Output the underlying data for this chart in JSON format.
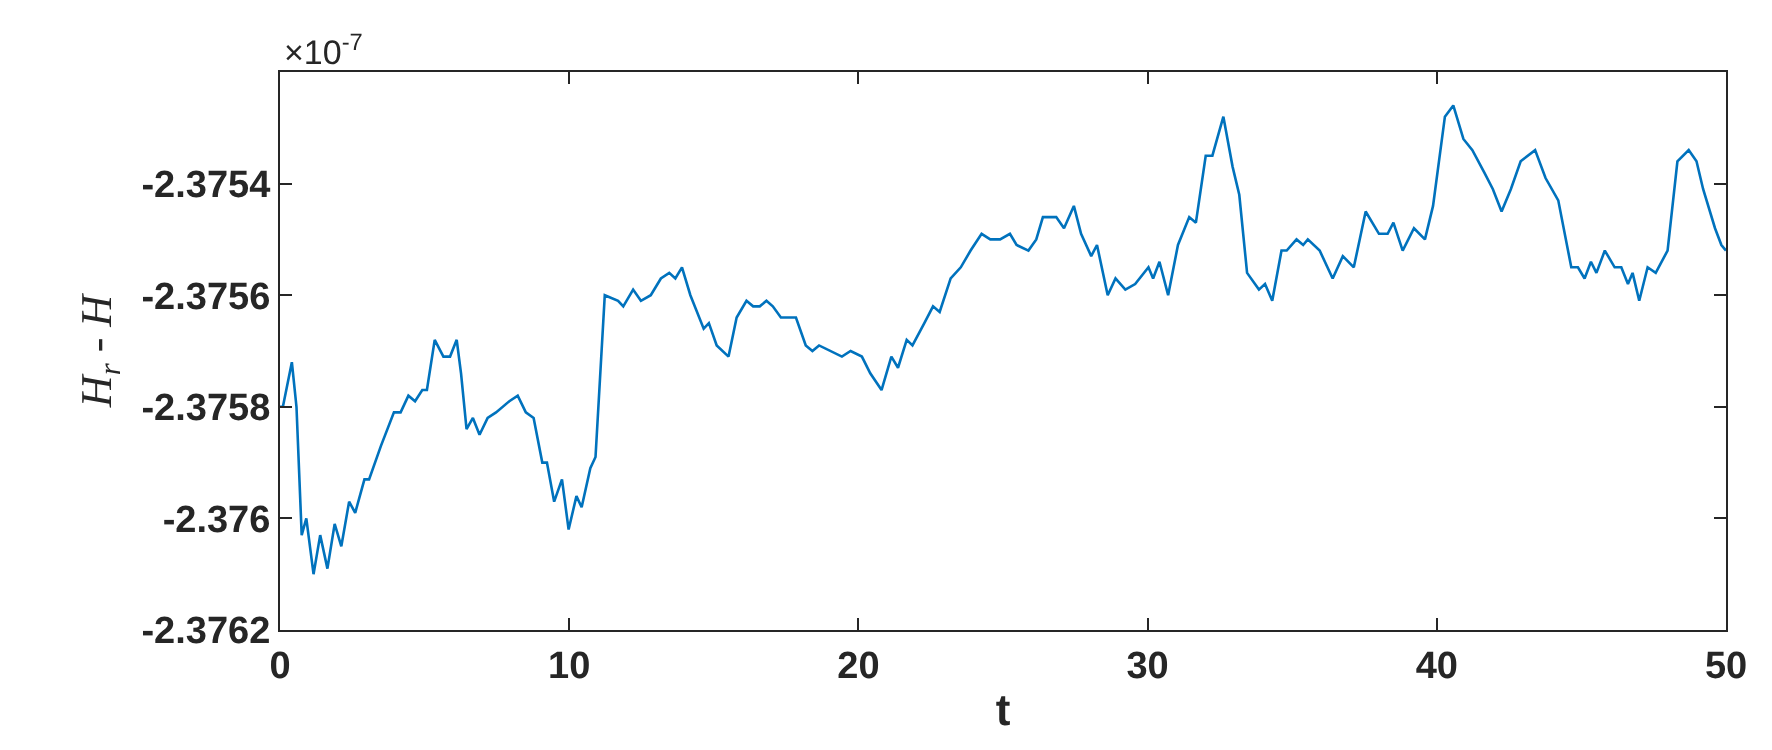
{
  "chart_data": {
    "type": "line",
    "xlabel": "t",
    "ylabel": "H$_{r}$ - H",
    "annotations": [
      "×10$^{-7}$"
    ],
    "x": [
      0,
      0.1,
      0.41,
      0.57,
      0.75,
      0.91,
      1.16,
      1.39,
      1.64,
      1.89,
      2.12,
      2.39,
      2.6,
      2.92,
      3.08,
      3.49,
      3.94,
      4.17,
      4.44,
      4.67,
      4.92,
      5.08,
      5.35,
      5.65,
      5.88,
      6.11,
      6.26,
      6.45,
      6.67,
      6.9,
      7.18,
      7.47,
      7.93,
      8.22,
      8.5,
      8.77,
      9.07,
      9.23,
      9.48,
      9.75,
      9.98,
      10.25,
      10.43,
      10.73,
      10.91,
      11.23,
      11.69,
      11.87,
      12.21,
      12.48,
      12.82,
      13.17,
      13.46,
      13.67,
      13.9,
      14.19,
      14.65,
      14.83,
      15.1,
      15.51,
      15.79,
      16.13,
      16.36,
      16.59,
      16.82,
      17.04,
      17.32,
      17.84,
      18.18,
      18.41,
      18.64,
      19.43,
      19.73,
      20.12,
      20.41,
      20.8,
      21.14,
      21.37,
      21.67,
      21.87,
      22.28,
      22.58,
      22.81,
      23.19,
      23.54,
      23.88,
      24.26,
      24.56,
      24.9,
      25.24,
      25.47,
      25.88,
      26.15,
      26.38,
      26.84,
      27.11,
      27.45,
      27.7,
      28.05,
      28.25,
      28.62,
      28.89,
      29.23,
      29.57,
      30.03,
      30.19,
      30.41,
      30.71,
      31.05,
      31.44,
      31.67,
      32.01,
      32.24,
      32.62,
      32.94,
      33.17,
      33.44,
      33.85,
      34.06,
      34.31,
      34.63,
      34.81,
      35.15,
      35.38,
      35.54,
      35.95,
      36.4,
      36.75,
      37.13,
      37.54,
      38.0,
      38.3,
      38.5,
      38.82,
      39.21,
      39.59,
      39.87,
      40.28,
      40.57,
      40.92,
      41.23,
      41.64,
      41.94,
      42.24,
      42.56,
      42.9,
      43.4,
      43.76,
      44.2,
      44.65,
      44.88,
      45.11,
      45.33,
      45.52,
      45.81,
      46.15,
      46.38,
      46.61,
      46.77,
      47.0,
      47.29,
      47.57,
      47.98,
      48.32,
      48.71,
      48.98,
      49.21,
      49.62,
      49.84,
      50
    ],
    "series": [
      {
        "color": "#0072bd",
        "values": [
          -2.3758,
          -2.3758,
          -2.37572,
          -2.3758,
          -2.37603,
          -2.376,
          -2.3761,
          -2.37603,
          -2.37609,
          -2.37601,
          -2.37605,
          -2.37597,
          -2.37599,
          -2.37593,
          -2.37593,
          -2.37587,
          -2.37581,
          -2.37581,
          -2.37578,
          -2.37579,
          -2.37577,
          -2.37577,
          -2.37568,
          -2.37571,
          -2.37571,
          -2.37568,
          -2.37574,
          -2.37584,
          -2.37582,
          -2.37585,
          -2.37582,
          -2.37581,
          -2.37579,
          -2.37578,
          -2.37581,
          -2.37582,
          -2.3759,
          -2.3759,
          -2.37597,
          -2.37593,
          -2.37602,
          -2.37596,
          -2.37598,
          -2.37591,
          -2.37589,
          -2.3756,
          -2.37561,
          -2.37562,
          -2.37559,
          -2.37561,
          -2.3756,
          -2.37557,
          -2.37556,
          -2.37557,
          -2.37555,
          -2.3756,
          -2.37566,
          -2.37565,
          -2.37569,
          -2.37571,
          -2.37564,
          -2.37561,
          -2.37562,
          -2.37562,
          -2.37561,
          -2.37562,
          -2.37564,
          -2.37564,
          -2.37569,
          -2.3757,
          -2.37569,
          -2.37571,
          -2.3757,
          -2.37571,
          -2.37574,
          -2.37577,
          -2.37571,
          -2.37573,
          -2.37568,
          -2.37569,
          -2.37565,
          -2.37562,
          -2.37563,
          -2.37557,
          -2.37555,
          -2.37552,
          -2.37549,
          -2.3755,
          -2.3755,
          -2.37549,
          -2.37551,
          -2.37552,
          -2.3755,
          -2.37546,
          -2.37546,
          -2.37548,
          -2.37544,
          -2.37549,
          -2.37553,
          -2.37551,
          -2.3756,
          -2.37557,
          -2.37559,
          -2.37558,
          -2.37555,
          -2.37557,
          -2.37554,
          -2.3756,
          -2.37551,
          -2.37546,
          -2.37547,
          -2.37535,
          -2.37535,
          -2.37528,
          -2.37537,
          -2.37542,
          -2.37556,
          -2.37559,
          -2.37558,
          -2.37561,
          -2.37552,
          -2.37552,
          -2.3755,
          -2.37551,
          -2.3755,
          -2.37552,
          -2.37557,
          -2.37553,
          -2.37555,
          -2.37545,
          -2.37549,
          -2.37549,
          -2.37547,
          -2.37552,
          -2.37548,
          -2.3755,
          -2.37544,
          -2.37528,
          -2.37526,
          -2.37532,
          -2.37534,
          -2.37538,
          -2.37541,
          -2.37545,
          -2.37541,
          -2.37536,
          -2.37534,
          -2.37539,
          -2.37543,
          -2.37555,
          -2.37555,
          -2.37557,
          -2.37554,
          -2.37556,
          -2.37552,
          -2.37555,
          -2.37555,
          -2.37558,
          -2.37556,
          -2.37561,
          -2.37555,
          -2.37556,
          -2.37552,
          -2.37536,
          -2.37534,
          -2.37536,
          -2.37541,
          -2.37548,
          -2.37551,
          -2.37552
        ]
      }
    ],
    "xlim": [
      0,
      50
    ],
    "xticks": [
      0,
      10,
      20,
      30,
      40,
      50
    ],
    "ylim": [
      -2.3762,
      -2.3752
    ],
    "yticks": [
      -2.3762,
      -2.376,
      -2.3758,
      -2.3756,
      -2.3754
    ],
    "marker": "none",
    "line_style": "solid"
  }
}
